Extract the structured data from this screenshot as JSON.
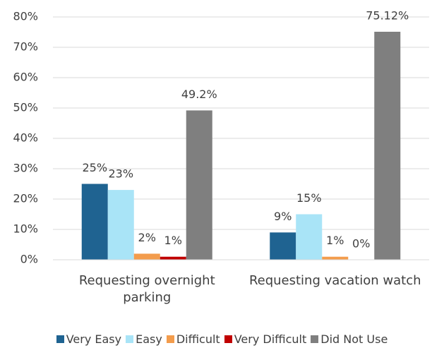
{
  "chart_data": {
    "type": "bar",
    "categories": [
      "Requesting overnight parking",
      "Requesting vacation watch"
    ],
    "series": [
      {
        "name": "Very Easy",
        "color": "#1f6391",
        "values": [
          25,
          9
        ],
        "value_labels": [
          "25%",
          "9%"
        ]
      },
      {
        "name": "Easy",
        "color": "#a9e4f7",
        "values": [
          23,
          15
        ],
        "value_labels": [
          "23%",
          "15%"
        ]
      },
      {
        "name": "Difficult",
        "color": "#f39c4c",
        "values": [
          2,
          1
        ],
        "value_labels": [
          "2%",
          "1%"
        ]
      },
      {
        "name": "Very Difficult",
        "color": "#c00000",
        "values": [
          1,
          0
        ],
        "value_labels": [
          "1%",
          "0%"
        ]
      },
      {
        "name": "Did Not Use",
        "color": "#7f7f7f",
        "values": [
          49.2,
          75.12
        ],
        "value_labels": [
          "49.2%",
          "75.12%"
        ]
      }
    ],
    "ylim": [
      0,
      80
    ],
    "yticks": [
      {
        "value": 0,
        "label": "0%"
      },
      {
        "value": 10,
        "label": "10%"
      },
      {
        "value": 20,
        "label": "20%"
      },
      {
        "value": 30,
        "label": "30%"
      },
      {
        "value": 40,
        "label": "40%"
      },
      {
        "value": 50,
        "label": "50%"
      },
      {
        "value": 60,
        "label": "60%"
      },
      {
        "value": 70,
        "label": "70%"
      },
      {
        "value": 80,
        "label": "80%"
      }
    ],
    "grid": true,
    "legend": "bottom"
  }
}
